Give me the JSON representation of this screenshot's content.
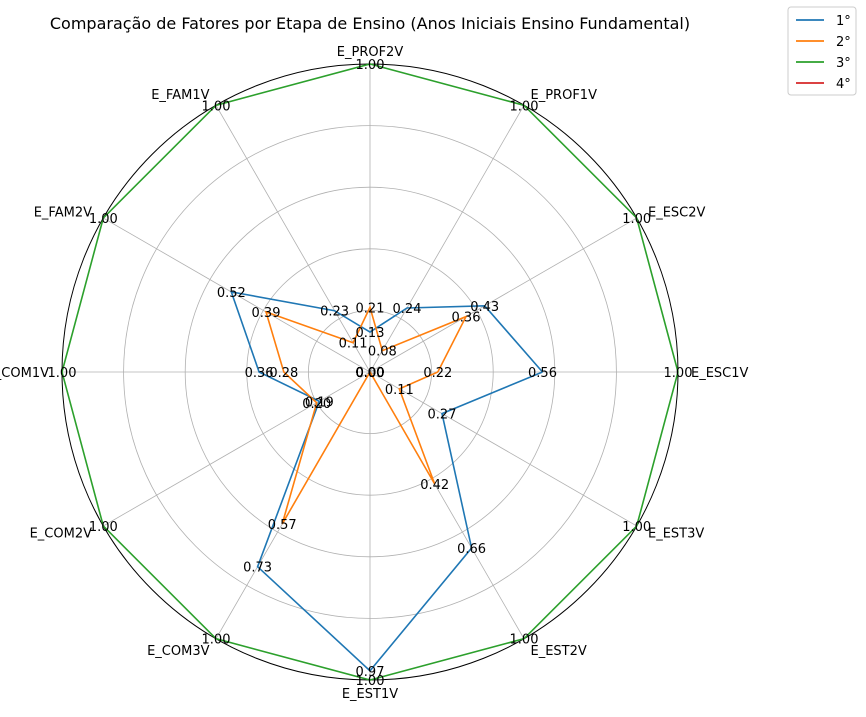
{
  "chart_data": {
    "type": "radar",
    "title": "Comparação de Fatores por Etapa de Ensino (Anos Iniciais Ensino Fundamental)",
    "axes": [
      "E_ESC1V",
      "E_ESC2V",
      "E_PROF1V",
      "E_PROF2V",
      "E_FAM1V",
      "E_FAM2V",
      "E_COM1V",
      "E_COM2V",
      "E_COM3V",
      "E_EST1V",
      "E_EST2V",
      "E_EST3V"
    ],
    "rlim": [
      0,
      1
    ],
    "grid": true,
    "legend_position": "top-right",
    "series": [
      {
        "name": "1°",
        "color": "#1f77b4",
        "values": [
          0.56,
          0.43,
          0.24,
          0.13,
          0.23,
          0.52,
          0.36,
          0.19,
          0.73,
          0.97,
          0.66,
          0.27
        ],
        "labels": [
          "0.56",
          "0.43",
          "0.24",
          "0.13",
          "0.23",
          "0.52",
          "0.36",
          "0.19",
          "0.73",
          "0.97",
          "0.66",
          "0.27"
        ]
      },
      {
        "name": "2°",
        "color": "#ff7f0e",
        "values": [
          0.22,
          0.36,
          0.08,
          0.21,
          0.11,
          0.39,
          0.28,
          0.2,
          0.57,
          0.0,
          0.42,
          0.11
        ],
        "labels": [
          "0.22",
          "0.36",
          "0.08",
          "0.21",
          "0.11",
          "0.39",
          "0.28",
          "0.20",
          "0.57",
          "0.00",
          "0.42",
          "0.11"
        ]
      },
      {
        "name": "3°",
        "color": "#2ca02c",
        "values": [
          1,
          1,
          1,
          1,
          1,
          1,
          1,
          1,
          1,
          1,
          1,
          1
        ],
        "labels": [
          "1.00",
          "1.00",
          "1.00",
          "1.00",
          "1.00",
          "1.00",
          "1.00",
          "1.00",
          "1.00",
          "1.00",
          "1.00",
          "1.00"
        ]
      },
      {
        "name": "4°",
        "color": "#d62728",
        "values": [
          0,
          0,
          0,
          0,
          0,
          0,
          0,
          0,
          0,
          0,
          0,
          0
        ],
        "labels": [
          "0.00",
          "0.00",
          "0.00",
          "0.00",
          "0.00",
          "0.00",
          "0.00",
          "0.00",
          "0.00",
          "0.00",
          "0.00",
          "0.00"
        ]
      }
    ]
  }
}
